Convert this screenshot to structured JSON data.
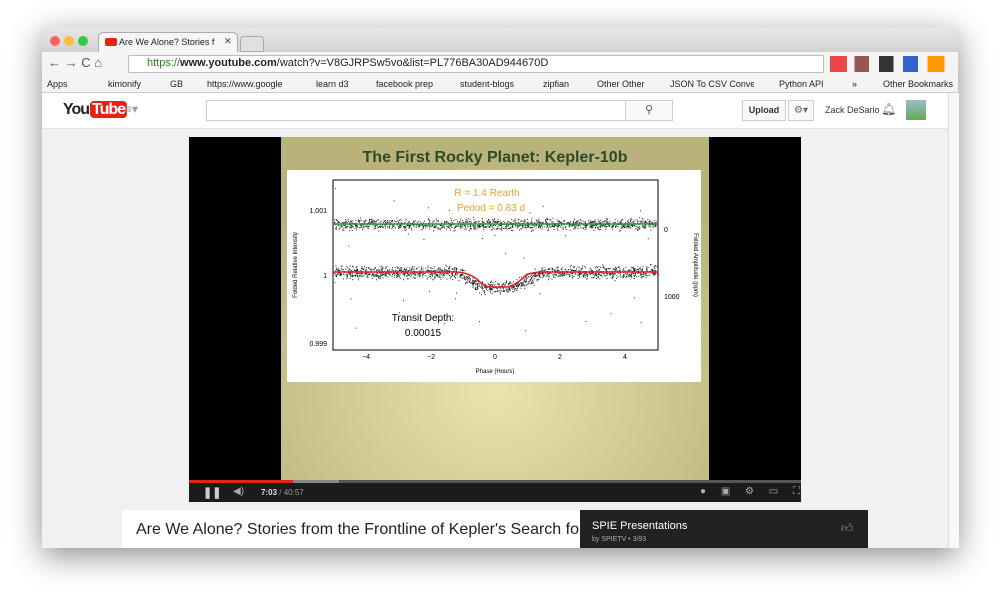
{
  "browser": {
    "tab_title": "Are We Alone? Stories f",
    "url": {
      "scheme": "https://",
      "host": "www.youtube.com",
      "path": "/watch?v=V8GJRPSw5vo&list=PL776BA30AD944670D"
    },
    "bookmarks": [
      "Apps",
      "kimonify",
      "GB",
      "https://www.google",
      "learn d3",
      "facebook prep",
      "student-blogs",
      "zipfian",
      "Other Other",
      "JSON To CSV Conver",
      "Python API"
    ],
    "more_bookmarks": "»",
    "other_bookmarks": "Other Bookmarks"
  },
  "youtube": {
    "logo_left": "You",
    "logo_right": "Tube",
    "upload": "Upload",
    "user": "Zack DeSario"
  },
  "video": {
    "slide": {
      "title": "The First Rocky Planet: Kepler-10b",
      "radius": "R = 1.4 Rearth",
      "period": "Period = 0.83 d",
      "transit_label": "Transit Depth:",
      "transit_value": "0.00015",
      "y_label": "Folded Relative Intensity",
      "y2_label": "Folded Amplitude (ppm)",
      "x_label": "Phase (Hours)",
      "y_ticks": [
        "1.001",
        "1",
        "0.999"
      ],
      "y2_ticks": [
        "0",
        "1000"
      ],
      "x_ticks": [
        "−4",
        "−2",
        "0",
        "2",
        "4"
      ]
    },
    "time_current": "7:03",
    "time_total": "/ 40:57"
  },
  "video_title": "Are We Alone? Stories from the Frontline of Kepler's Search for …",
  "playlist": {
    "name": "SPIE Presentations",
    "info": "by SPIETV • 3/93"
  }
}
